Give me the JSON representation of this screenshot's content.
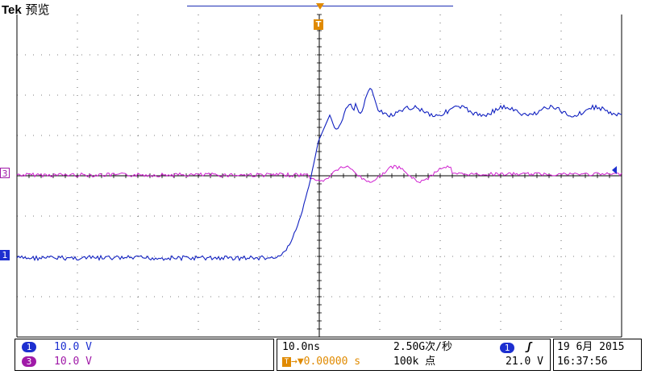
{
  "header": {
    "brand": "Tek",
    "mode": "预览"
  },
  "markers": {
    "ch3": "3",
    "ch1": "1",
    "trigger_top": "T"
  },
  "channels": [
    {
      "id": "1",
      "scale": "10.0 V",
      "color": "#1d2fd0"
    },
    {
      "id": "3",
      "scale": "10.0 V",
      "color": "#a01aa8"
    }
  ],
  "horizontal": {
    "timebase": "10.0ns",
    "sample_rate": "2.50G次/秒",
    "trigger_position": "0.00000 s",
    "trigger_position_icon": "T",
    "record_length": "100k 点"
  },
  "trigger": {
    "source": "1",
    "slope_icon": "rising-edge-icon",
    "slope_glyph": "ʃ",
    "level": "21.0 V"
  },
  "datetime": {
    "date": "19 6月  2015",
    "time": "16:37:56"
  },
  "colors": {
    "ch1": "#1d2fd0",
    "ch3": "#a01aa8",
    "trigger": "#e08a00",
    "grid": "#000000"
  }
}
